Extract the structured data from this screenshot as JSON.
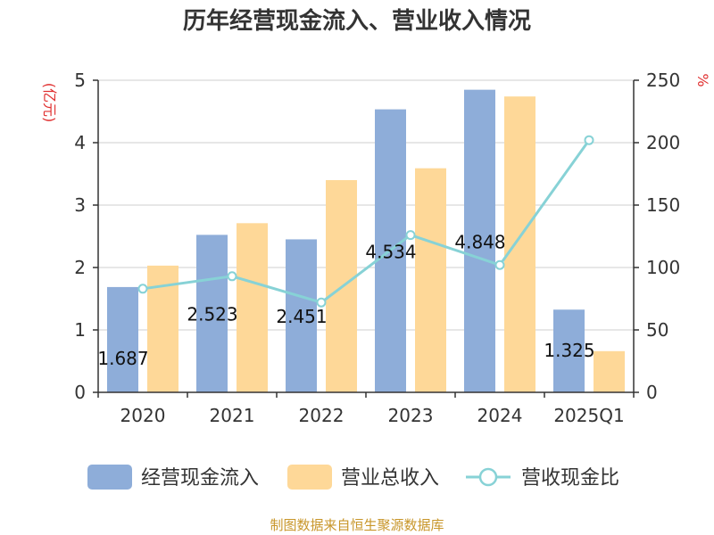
{
  "title": "历年经营现金流入、营业收入情况",
  "left_unit": "(亿元)",
  "right_unit": "%",
  "source": "制图数据来自恒生聚源数据库",
  "colors": {
    "operating_cash_inflow": "#8eadd9",
    "total_revenue": "#fed898",
    "ratio_line": "#87d2d6",
    "axis": "#333333",
    "grid": "#cfcfcf",
    "unit_text": "#e03030",
    "source_text": "#c8962a"
  },
  "legend": [
    "经营现金流入",
    "营业总收入",
    "营收现金比"
  ],
  "chart_data": {
    "type": "bar",
    "title": "历年经营现金流入、营业收入情况",
    "categories": [
      "2020",
      "2021",
      "2022",
      "2023",
      "2024",
      "2025Q1"
    ],
    "series": [
      {
        "name": "经营现金流入",
        "type": "bar",
        "axis": "left",
        "values": [
          1.687,
          2.523,
          2.451,
          4.534,
          4.848,
          1.325
        ],
        "labels": [
          "1.687",
          "2.523",
          "2.451",
          "4.534",
          "4.848",
          "1.325"
        ]
      },
      {
        "name": "营业总收入",
        "type": "bar",
        "axis": "left",
        "values": [
          2.03,
          2.71,
          3.4,
          3.59,
          4.74,
          0.66
        ]
      },
      {
        "name": "营收现金比",
        "type": "line",
        "axis": "right",
        "values": [
          83,
          93,
          72,
          126,
          102,
          202
        ]
      }
    ],
    "y_left": {
      "label": "(亿元)",
      "range": [
        0,
        5
      ],
      "ticks": [
        "0",
        "1",
        "2",
        "3",
        "4",
        "5"
      ]
    },
    "y_right": {
      "label": "%",
      "range": [
        0,
        250
      ],
      "ticks": [
        "0",
        "50",
        "100",
        "150",
        "200",
        "250"
      ]
    },
    "grid": true,
    "legend_position": "bottom"
  }
}
